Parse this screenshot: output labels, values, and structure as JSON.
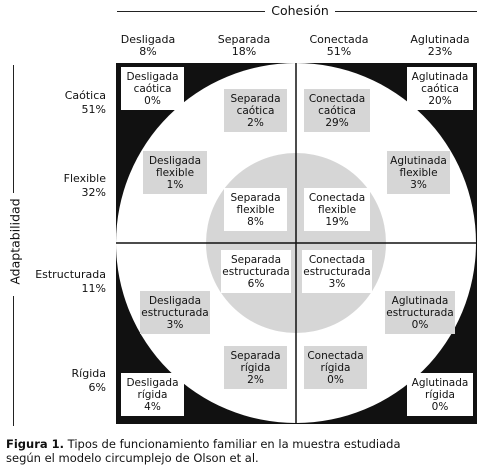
{
  "axis_top": "Cohesión",
  "axis_left": "Adaptabilidad",
  "columns": [
    {
      "name": "Desligada",
      "pct": "8%"
    },
    {
      "name": "Separada",
      "pct": "18%"
    },
    {
      "name": "Conectada",
      "pct": "51%"
    },
    {
      "name": "Aglutinada",
      "pct": "23%"
    }
  ],
  "rows": [
    {
      "name": "Caótica",
      "pct": "51%"
    },
    {
      "name": "Flexible",
      "pct": "32%"
    },
    {
      "name": "Estructurada",
      "pct": "11%"
    },
    {
      "name": "Rígida",
      "pct": "6%"
    }
  ],
  "cells": [
    {
      "l1": "Desligada",
      "l2": "caótica",
      "pct": "0%"
    },
    {
      "l1": "Separada",
      "l2": "caótica",
      "pct": "2%"
    },
    {
      "l1": "Conectada",
      "l2": "caótica",
      "pct": "29%"
    },
    {
      "l1": "Aglutinada",
      "l2": "caótica",
      "pct": "20%"
    },
    {
      "l1": "Desligada",
      "l2": "flexible",
      "pct": "1%"
    },
    {
      "l1": "Separada",
      "l2": "flexible",
      "pct": "8%"
    },
    {
      "l1": "Conectada",
      "l2": "flexible",
      "pct": "19%"
    },
    {
      "l1": "Aglutinada",
      "l2": "flexible",
      "pct": "3%"
    },
    {
      "l1": "Desligada",
      "l2": "estructurada",
      "pct": "3%"
    },
    {
      "l1": "Separada",
      "l2": "estructurada",
      "pct": "6%"
    },
    {
      "l1": "Conectada",
      "l2": "estructurada",
      "pct": "3%"
    },
    {
      "l1": "Aglutinada",
      "l2": "estructurada",
      "pct": "0%"
    },
    {
      "l1": "Desligada",
      "l2": "rígida",
      "pct": "4%"
    },
    {
      "l1": "Separada",
      "l2": "rígida",
      "pct": "2%"
    },
    {
      "l1": "Conectada",
      "l2": "rígida",
      "pct": "0%"
    },
    {
      "l1": "Aglutinada",
      "l2": "rígida",
      "pct": "0%"
    }
  ],
  "caption": {
    "label": "Figura 1.",
    "line1": " Tipos de funcionamiento familiar en la muestra estudiada",
    "line2": "según el modelo circumplejo de Olson et al."
  }
}
